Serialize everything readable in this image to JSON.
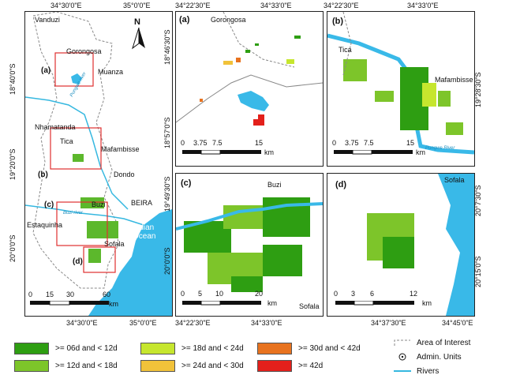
{
  "overview": {
    "top_ticks": [
      "34°30'0\"E",
      "35°0'0\"E"
    ],
    "bottom_ticks": [
      "34°30'0\"E",
      "35°0'0\"E"
    ],
    "left_ticks": [
      "18°40'0\"S",
      "19°20'0\"S",
      "20°0'0\"S"
    ],
    "places": [
      "Vanduzi",
      "Gorongosa",
      "Muanza",
      "Nhamatanda",
      "Tica",
      "Mafambisse",
      "Dondo",
      "BEIRA",
      "Buzi",
      "Estaquinha",
      "Sofala"
    ],
    "ocean": "Indian Ocean",
    "river_labels": [
      "Pungwe river",
      "Buzi river"
    ],
    "box_labels": [
      "(a)",
      "(b)",
      "(c)",
      "(d)"
    ],
    "north": "N",
    "scale_labels": [
      "0",
      "15",
      "30",
      "60"
    ],
    "scale_unit": "km"
  },
  "panel_a": {
    "label": "(a)",
    "top_ticks": [
      "34°22'30\"E",
      "34°33'0\"E"
    ],
    "left_ticks": [
      "18°46'30\"S",
      "18°57'0\"S"
    ],
    "places": [
      "Gorongosa"
    ],
    "scale_labels": [
      "0",
      "3.75",
      "7.5",
      "15"
    ],
    "scale_unit": "km"
  },
  "panel_b": {
    "label": "(b)",
    "top_ticks": [
      "34°22'30\"E",
      "34°33'0\"E"
    ],
    "right_ticks": [
      "19°28'30\"S"
    ],
    "places": [
      "Tica",
      "Mafambisse"
    ],
    "river_label": "Pungwe River",
    "scale_labels": [
      "0",
      "3.75",
      "7.5",
      "15"
    ],
    "scale_unit": "km"
  },
  "panel_c": {
    "label": "(c)",
    "bottom_ticks": [
      "34°22'30\"E",
      "34°33'0\"E"
    ],
    "left_ticks": [
      "19°49'30\"S",
      "20°0'0\"S"
    ],
    "places": [
      "Buzi",
      "Sofala"
    ],
    "scale_labels": [
      "0",
      "5",
      "10",
      "20"
    ],
    "scale_unit": "km"
  },
  "panel_d": {
    "label": "(d)",
    "bottom_ticks": [
      "34°37'30\"E",
      "34°45'0\"E"
    ],
    "right_ticks": [
      "20°7'30\"S",
      "20°15'0\"S"
    ],
    "places": [
      "Sofala"
    ],
    "scale_labels": [
      "0",
      "3",
      "6",
      "12"
    ],
    "scale_unit": "km"
  },
  "legend": {
    "classes": [
      {
        "label": ">= 06d and < 12d",
        "color": "#2e9e12"
      },
      {
        "label": ">= 12d and < 18d",
        "color": "#7dc52a"
      },
      {
        "label": ">= 18d and < 24d",
        "color": "#c6e62e"
      },
      {
        "label": ">= 24d and < 30d",
        "color": "#f1c23a"
      },
      {
        "label": ">= 30d and < 42d",
        "color": "#e8731f"
      },
      {
        "label": ">= 42d",
        "color": "#e3201b"
      }
    ],
    "symbols": [
      {
        "label": "Area of Interest",
        "icon": "dashed-boundary-icon"
      },
      {
        "label": "Admin. Units",
        "icon": "admin-unit-icon"
      },
      {
        "label": "Rivers",
        "icon": "river-line-icon",
        "color": "#36b8e0"
      }
    ]
  },
  "colors": {
    "water": "#39b9e8",
    "river": "#36b8e0",
    "box": "#e03030",
    "boundary": "#888888"
  }
}
